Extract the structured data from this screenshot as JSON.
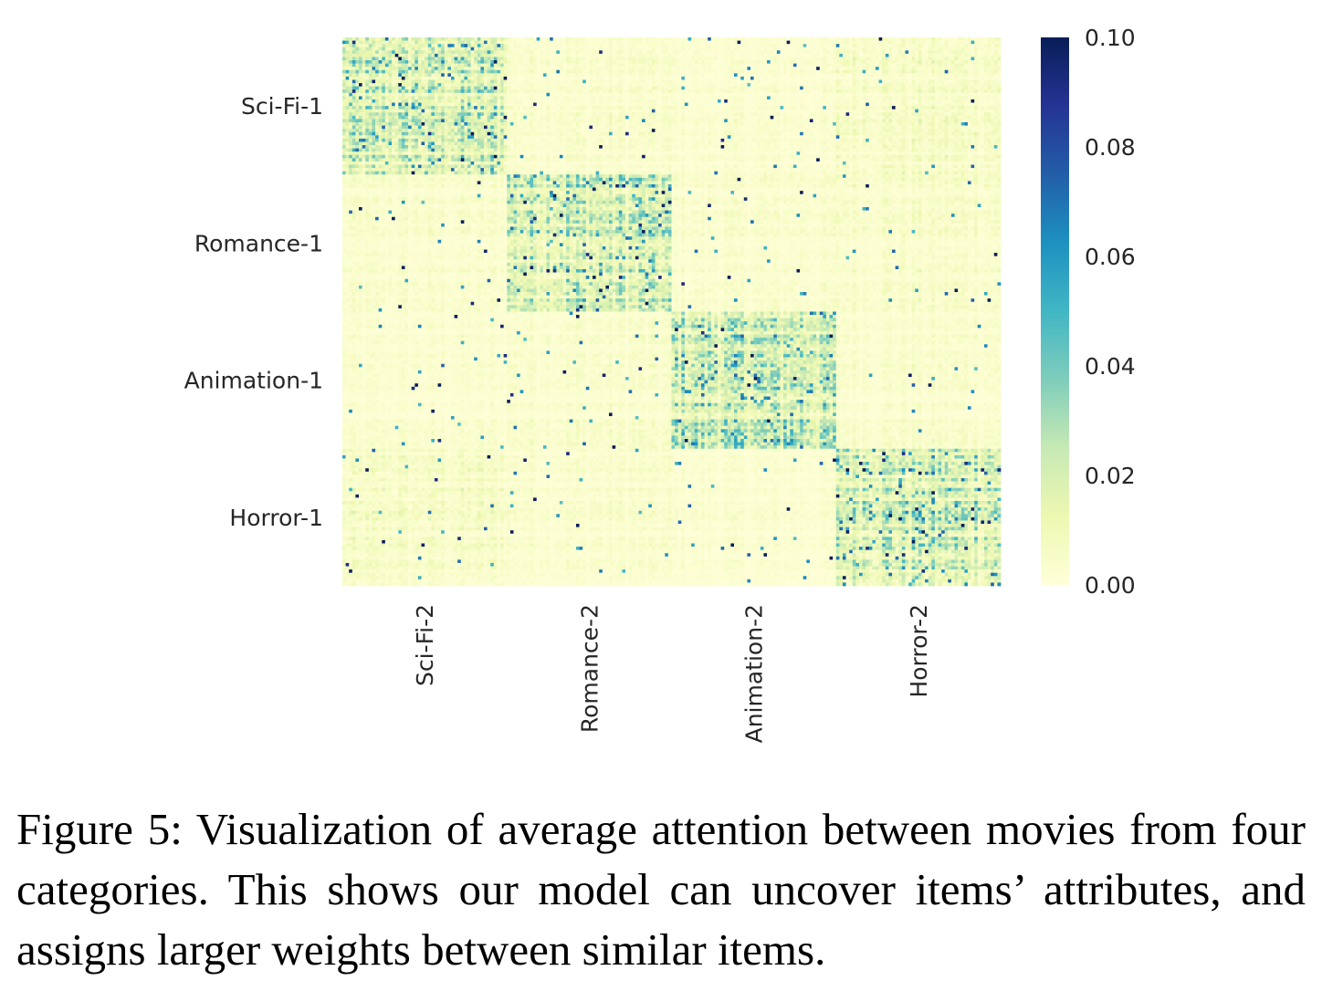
{
  "chart_data": {
    "type": "heatmap",
    "title": "",
    "xlabel": "",
    "ylabel": "",
    "row_categories": [
      "Sci-Fi-1",
      "Romance-1",
      "Animation-1",
      "Horror-1"
    ],
    "col_categories": [
      "Sci-Fi-2",
      "Romance-2",
      "Animation-2",
      "Horror-2"
    ],
    "rows_per_category": 42,
    "cols_per_category": 50,
    "value_range": [
      0.0,
      0.1
    ],
    "colormap": "YlGnBu",
    "block_mean_attention": [
      [
        0.018,
        0.004,
        0.003,
        0.006
      ],
      [
        0.004,
        0.02,
        0.004,
        0.005
      ],
      [
        0.003,
        0.004,
        0.022,
        0.004
      ],
      [
        0.006,
        0.004,
        0.003,
        0.021
      ]
    ],
    "colorbar": {
      "ticks": [
        0.0,
        0.02,
        0.04,
        0.06,
        0.08,
        0.1
      ],
      "tick_labels": [
        "0.00",
        "0.02",
        "0.04",
        "0.06",
        "0.08",
        "0.10"
      ],
      "colors": [
        "#ffffd9",
        "#edf8b1",
        "#c7e9b4",
        "#7fcdbb",
        "#41b6c4",
        "#1d91c0",
        "#225ea8",
        "#253494",
        "#081d58"
      ]
    }
  },
  "caption": "Figure 5: Visualization of average attention between movies from four categories. This shows our model can uncover items’ attributes, and assigns larger weights between similar items."
}
